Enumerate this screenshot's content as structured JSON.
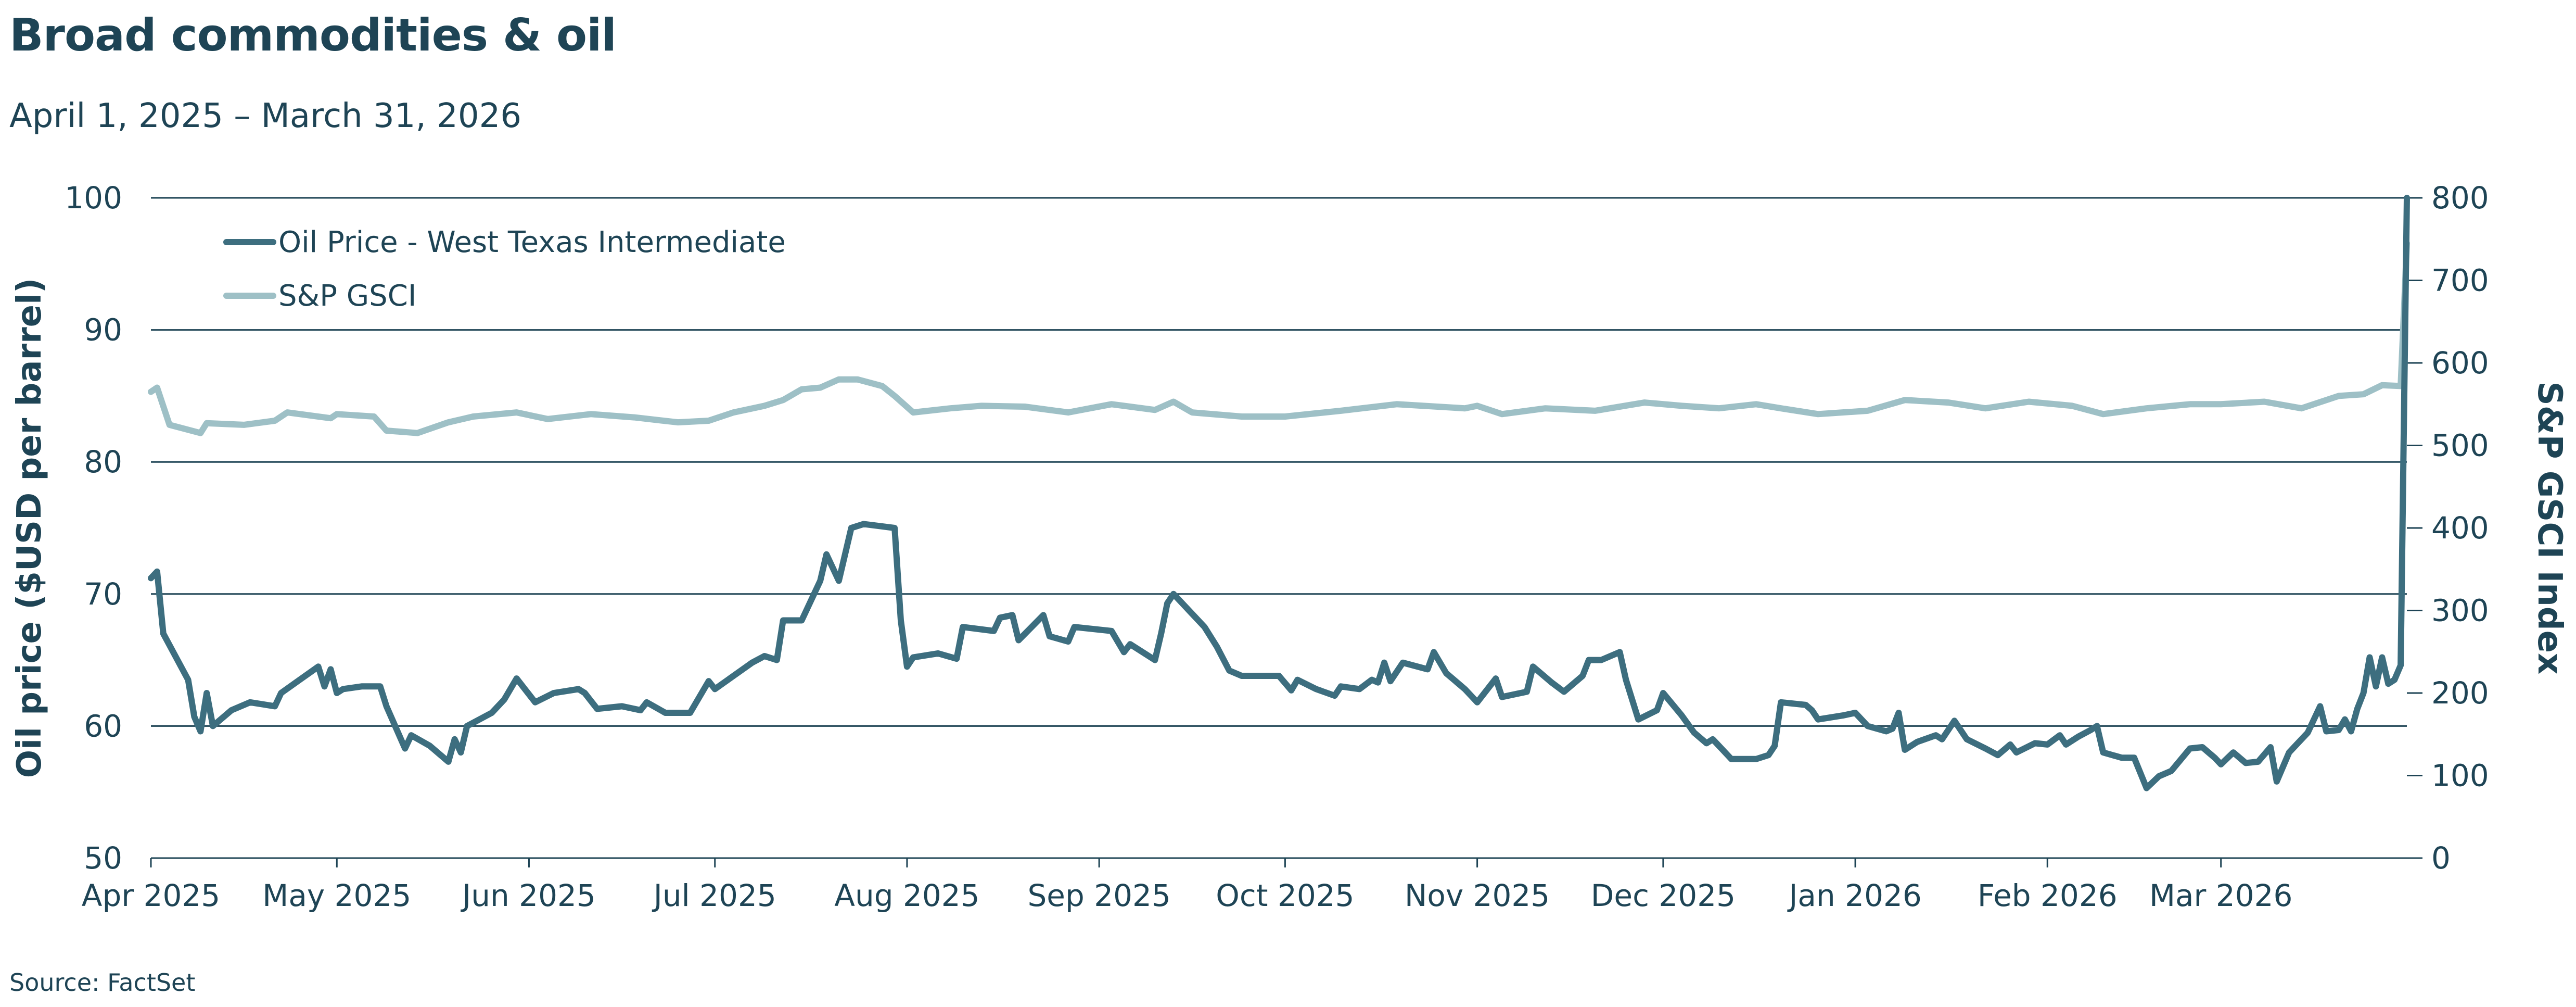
{
  "title": "Broad commodities & oil",
  "subtitle": "April 1, 2025 – March 31, 2026",
  "source": "Source: FactSet",
  "colors": {
    "oil": "#3d6e7f",
    "gsci": "#9ec0c6",
    "text": "#1e4455",
    "grid": "#1e4455"
  },
  "chart_data": {
    "type": "line",
    "title": "Broad commodities & oil",
    "subtitle": "April 1, 2025 – March 31, 2026",
    "xlabel": "",
    "ylabel": "Oil price ($USD per barrel)",
    "y2label": "S&P GSCI Index",
    "ylim": [
      50,
      100
    ],
    "y2lim": [
      0,
      800
    ],
    "yticks": [
      "50",
      "60",
      "70",
      "80",
      "90",
      "100"
    ],
    "y2ticks": [
      "0",
      "100",
      "200",
      "300",
      "400",
      "500",
      "600",
      "700",
      "800"
    ],
    "xticks": [
      "Apr 2025",
      "May 2025",
      "Jun 2025",
      "Jul 2025",
      "Aug 2025",
      "Sep 2025",
      "Oct 2025",
      "Nov 2025",
      "Dec 2025",
      "Jan 2026",
      "Feb 2026",
      "Mar 2026"
    ],
    "xlim": [
      "2025-04-01",
      "2026-03-31"
    ],
    "grid": "horizontal",
    "legend": "top-left",
    "series": [
      {
        "name": "Oil Price - West Texas Intermediate",
        "axis": "left",
        "points": [
          [
            "2025-04-01",
            71.2
          ],
          [
            "2025-04-02",
            71.7
          ],
          [
            "2025-04-03",
            67.0
          ],
          [
            "2025-04-07",
            63.5
          ],
          [
            "2025-04-08",
            60.7
          ],
          [
            "2025-04-09",
            59.6
          ],
          [
            "2025-04-10",
            62.5
          ],
          [
            "2025-04-11",
            60.0
          ],
          [
            "2025-04-14",
            61.2
          ],
          [
            "2025-04-17",
            61.8
          ],
          [
            "2025-04-21",
            61.5
          ],
          [
            "2025-04-22",
            62.5
          ],
          [
            "2025-04-25",
            63.5
          ],
          [
            "2025-04-28",
            64.5
          ],
          [
            "2025-04-29",
            63.0
          ],
          [
            "2025-04-30",
            64.3
          ],
          [
            "2025-05-01",
            62.5
          ],
          [
            "2025-05-02",
            62.8
          ],
          [
            "2025-05-05",
            63.0
          ],
          [
            "2025-05-08",
            63.0
          ],
          [
            "2025-05-09",
            61.5
          ],
          [
            "2025-05-12",
            58.3
          ],
          [
            "2025-05-13",
            59.3
          ],
          [
            "2025-05-16",
            58.5
          ],
          [
            "2025-05-19",
            57.3
          ],
          [
            "2025-05-20",
            59.0
          ],
          [
            "2025-05-21",
            58.0
          ],
          [
            "2025-05-22",
            60.0
          ],
          [
            "2025-05-26",
            61.0
          ],
          [
            "2025-05-28",
            62.0
          ],
          [
            "2025-05-30",
            63.6
          ],
          [
            "2025-06-02",
            61.8
          ],
          [
            "2025-06-05",
            62.5
          ],
          [
            "2025-06-09",
            62.8
          ],
          [
            "2025-06-10",
            62.5
          ],
          [
            "2025-06-12",
            61.3
          ],
          [
            "2025-06-16",
            61.5
          ],
          [
            "2025-06-19",
            61.2
          ],
          [
            "2025-06-20",
            61.8
          ],
          [
            "2025-06-23",
            61.0
          ],
          [
            "2025-06-27",
            61.0
          ],
          [
            "2025-06-30",
            63.4
          ],
          [
            "2025-07-01",
            62.8
          ],
          [
            "2025-07-04",
            63.8
          ],
          [
            "2025-07-07",
            64.8
          ],
          [
            "2025-07-09",
            65.3
          ],
          [
            "2025-07-11",
            65.0
          ],
          [
            "2025-07-12",
            68.0
          ],
          [
            "2025-07-15",
            68.0
          ],
          [
            "2025-07-18",
            71.0
          ],
          [
            "2025-07-19",
            73.0
          ],
          [
            "2025-07-21",
            71.0
          ],
          [
            "2025-07-23",
            75.0
          ],
          [
            "2025-07-25",
            75.3
          ],
          [
            "2025-07-30",
            75.0
          ],
          [
            "2025-07-31",
            68.0
          ],
          [
            "2025-08-01",
            64.5
          ],
          [
            "2025-08-02",
            65.2
          ],
          [
            "2025-08-06",
            65.5
          ],
          [
            "2025-08-09",
            65.1
          ],
          [
            "2025-08-10",
            67.5
          ],
          [
            "2025-08-15",
            67.2
          ],
          [
            "2025-08-16",
            68.2
          ],
          [
            "2025-08-18",
            68.4
          ],
          [
            "2025-08-19",
            66.5
          ],
          [
            "2025-08-23",
            68.4
          ],
          [
            "2025-08-24",
            66.8
          ],
          [
            "2025-08-27",
            66.4
          ],
          [
            "2025-08-28",
            67.5
          ],
          [
            "2025-09-03",
            67.2
          ],
          [
            "2025-09-05",
            65.6
          ],
          [
            "2025-09-06",
            66.2
          ],
          [
            "2025-09-10",
            65.0
          ],
          [
            "2025-09-11",
            67.0
          ],
          [
            "2025-09-12",
            69.3
          ],
          [
            "2025-09-13",
            70.0
          ],
          [
            "2025-09-15",
            69.0
          ],
          [
            "2025-09-18",
            67.5
          ],
          [
            "2025-09-20",
            66.0
          ],
          [
            "2025-09-22",
            64.2
          ],
          [
            "2025-09-24",
            63.8
          ],
          [
            "2025-09-29",
            63.8
          ],
          [
            "2025-09-30",
            63.8
          ],
          [
            "2025-10-02",
            62.7
          ],
          [
            "2025-10-03",
            63.5
          ],
          [
            "2025-10-06",
            62.8
          ],
          [
            "2025-10-09",
            62.3
          ],
          [
            "2025-10-10",
            63.0
          ],
          [
            "2025-10-13",
            62.8
          ],
          [
            "2025-10-15",
            63.5
          ],
          [
            "2025-10-16",
            63.3
          ],
          [
            "2025-10-17",
            64.8
          ],
          [
            "2025-10-18",
            63.4
          ],
          [
            "2025-10-20",
            64.8
          ],
          [
            "2025-10-24",
            64.3
          ],
          [
            "2025-10-25",
            65.6
          ],
          [
            "2025-10-27",
            64.0
          ],
          [
            "2025-10-30",
            62.8
          ],
          [
            "2025-11-01",
            61.8
          ],
          [
            "2025-11-04",
            63.6
          ],
          [
            "2025-11-05",
            62.2
          ],
          [
            "2025-11-09",
            62.6
          ],
          [
            "2025-11-10",
            64.5
          ],
          [
            "2025-11-13",
            63.3
          ],
          [
            "2025-11-15",
            62.6
          ],
          [
            "2025-11-18",
            63.8
          ],
          [
            "2025-11-19",
            65.0
          ],
          [
            "2025-11-21",
            65.0
          ],
          [
            "2025-11-24",
            65.6
          ],
          [
            "2025-11-25",
            63.5
          ],
          [
            "2025-11-27",
            60.5
          ],
          [
            "2025-11-30",
            61.2
          ],
          [
            "2025-12-01",
            62.5
          ],
          [
            "2025-12-04",
            60.8
          ],
          [
            "2025-12-06",
            59.5
          ],
          [
            "2025-12-08",
            58.7
          ],
          [
            "2025-12-09",
            59.0
          ],
          [
            "2025-12-12",
            57.5
          ],
          [
            "2025-12-16",
            57.5
          ],
          [
            "2025-12-18",
            57.8
          ],
          [
            "2025-12-19",
            58.5
          ],
          [
            "2025-12-20",
            61.8
          ],
          [
            "2025-12-24",
            61.6
          ],
          [
            "2025-12-25",
            61.2
          ],
          [
            "2025-12-26",
            60.5
          ],
          [
            "2025-12-30",
            60.8
          ],
          [
            "2026-01-01",
            61.0
          ],
          [
            "2026-01-03",
            60.0
          ],
          [
            "2026-01-06",
            59.6
          ],
          [
            "2026-01-07",
            59.8
          ],
          [
            "2026-01-08",
            61.0
          ],
          [
            "2026-01-09",
            58.2
          ],
          [
            "2026-01-11",
            58.8
          ],
          [
            "2026-01-14",
            59.3
          ],
          [
            "2026-01-15",
            59.0
          ],
          [
            "2026-01-17",
            60.4
          ],
          [
            "2026-01-19",
            59.0
          ],
          [
            "2026-01-22",
            58.3
          ],
          [
            "2026-01-24",
            57.8
          ],
          [
            "2026-01-26",
            58.6
          ],
          [
            "2026-01-27",
            58.0
          ],
          [
            "2026-01-30",
            58.7
          ],
          [
            "2026-02-01",
            58.6
          ],
          [
            "2026-02-03",
            59.3
          ],
          [
            "2026-02-04",
            58.6
          ],
          [
            "2026-02-06",
            59.2
          ],
          [
            "2026-02-08",
            59.7
          ],
          [
            "2026-02-09",
            60.0
          ],
          [
            "2026-02-10",
            58.0
          ],
          [
            "2026-02-13",
            57.6
          ],
          [
            "2026-02-15",
            57.6
          ],
          [
            "2026-02-17",
            55.3
          ],
          [
            "2026-02-19",
            56.2
          ],
          [
            "2026-02-21",
            56.6
          ],
          [
            "2026-02-24",
            58.3
          ],
          [
            "2026-02-26",
            58.4
          ],
          [
            "2026-02-28",
            57.6
          ],
          [
            "2026-03-01",
            57.1
          ],
          [
            "2026-03-03",
            58.0
          ],
          [
            "2026-03-05",
            57.2
          ],
          [
            "2026-03-07",
            57.3
          ],
          [
            "2026-03-09",
            58.4
          ],
          [
            "2026-03-10",
            55.8
          ],
          [
            "2026-03-12",
            58.0
          ],
          [
            "2026-03-15",
            59.5
          ],
          [
            "2026-03-17",
            61.5
          ],
          [
            "2026-03-18",
            59.6
          ],
          [
            "2026-03-20",
            59.7
          ],
          [
            "2026-03-21",
            60.5
          ],
          [
            "2026-03-22",
            59.6
          ],
          [
            "2026-03-23",
            61.3
          ],
          [
            "2026-03-24",
            62.5
          ],
          [
            "2026-03-25",
            65.2
          ],
          [
            "2026-03-26",
            63.0
          ],
          [
            "2026-03-27",
            65.2
          ],
          [
            "2026-03-28",
            63.2
          ],
          [
            "2026-03-29",
            63.5
          ],
          [
            "2026-03-30",
            64.6
          ],
          [
            "2026-03-31",
            100.0
          ]
        ]
      },
      {
        "name": "S&P GSCI",
        "axis": "right",
        "points": [
          [
            "2025-04-01",
            565
          ],
          [
            "2025-04-02",
            570
          ],
          [
            "2025-04-04",
            525
          ],
          [
            "2025-04-09",
            515
          ],
          [
            "2025-04-10",
            527
          ],
          [
            "2025-04-16",
            525
          ],
          [
            "2025-04-21",
            530
          ],
          [
            "2025-04-23",
            540
          ],
          [
            "2025-04-30",
            533
          ],
          [
            "2025-05-01",
            538
          ],
          [
            "2025-05-07",
            535
          ],
          [
            "2025-05-09",
            518
          ],
          [
            "2025-05-14",
            515
          ],
          [
            "2025-05-19",
            528
          ],
          [
            "2025-05-23",
            535
          ],
          [
            "2025-05-30",
            540
          ],
          [
            "2025-06-04",
            532
          ],
          [
            "2025-06-11",
            538
          ],
          [
            "2025-06-18",
            534
          ],
          [
            "2025-06-25",
            528
          ],
          [
            "2025-06-30",
            530
          ],
          [
            "2025-07-04",
            540
          ],
          [
            "2025-07-09",
            548
          ],
          [
            "2025-07-12",
            555
          ],
          [
            "2025-07-15",
            568
          ],
          [
            "2025-07-18",
            570
          ],
          [
            "2025-07-21",
            580
          ],
          [
            "2025-07-24",
            580
          ],
          [
            "2025-07-28",
            572
          ],
          [
            "2025-07-30",
            560
          ],
          [
            "2025-08-02",
            540
          ],
          [
            "2025-08-08",
            545
          ],
          [
            "2025-08-13",
            548
          ],
          [
            "2025-08-20",
            547
          ],
          [
            "2025-08-27",
            540
          ],
          [
            "2025-09-03",
            550
          ],
          [
            "2025-09-10",
            543
          ],
          [
            "2025-09-13",
            553
          ],
          [
            "2025-09-16",
            540
          ],
          [
            "2025-09-24",
            535
          ],
          [
            "2025-10-01",
            535
          ],
          [
            "2025-10-10",
            542
          ],
          [
            "2025-10-19",
            550
          ],
          [
            "2025-10-30",
            545
          ],
          [
            "2025-11-01",
            548
          ],
          [
            "2025-11-05",
            538
          ],
          [
            "2025-11-12",
            545
          ],
          [
            "2025-11-20",
            542
          ],
          [
            "2025-11-28",
            552
          ],
          [
            "2025-12-04",
            548
          ],
          [
            "2025-12-10",
            545
          ],
          [
            "2025-12-16",
            550
          ],
          [
            "2025-12-20",
            545
          ],
          [
            "2025-12-26",
            538
          ],
          [
            "2026-01-03",
            542
          ],
          [
            "2026-01-09",
            555
          ],
          [
            "2026-01-16",
            552
          ],
          [
            "2026-01-22",
            545
          ],
          [
            "2026-01-29",
            553
          ],
          [
            "2026-02-05",
            548
          ],
          [
            "2026-02-10",
            538
          ],
          [
            "2026-02-17",
            545
          ],
          [
            "2026-02-24",
            550
          ],
          [
            "2026-03-01",
            550
          ],
          [
            "2026-03-08",
            553
          ],
          [
            "2026-03-14",
            545
          ],
          [
            "2026-03-20",
            560
          ],
          [
            "2026-03-24",
            562
          ],
          [
            "2026-03-27",
            573
          ],
          [
            "2026-03-30",
            572
          ],
          [
            "2026-03-31",
            745
          ]
        ]
      }
    ]
  },
  "legend": [
    {
      "label": "Oil Price - West Texas Intermediate"
    },
    {
      "label": "S&P GSCI"
    }
  ]
}
